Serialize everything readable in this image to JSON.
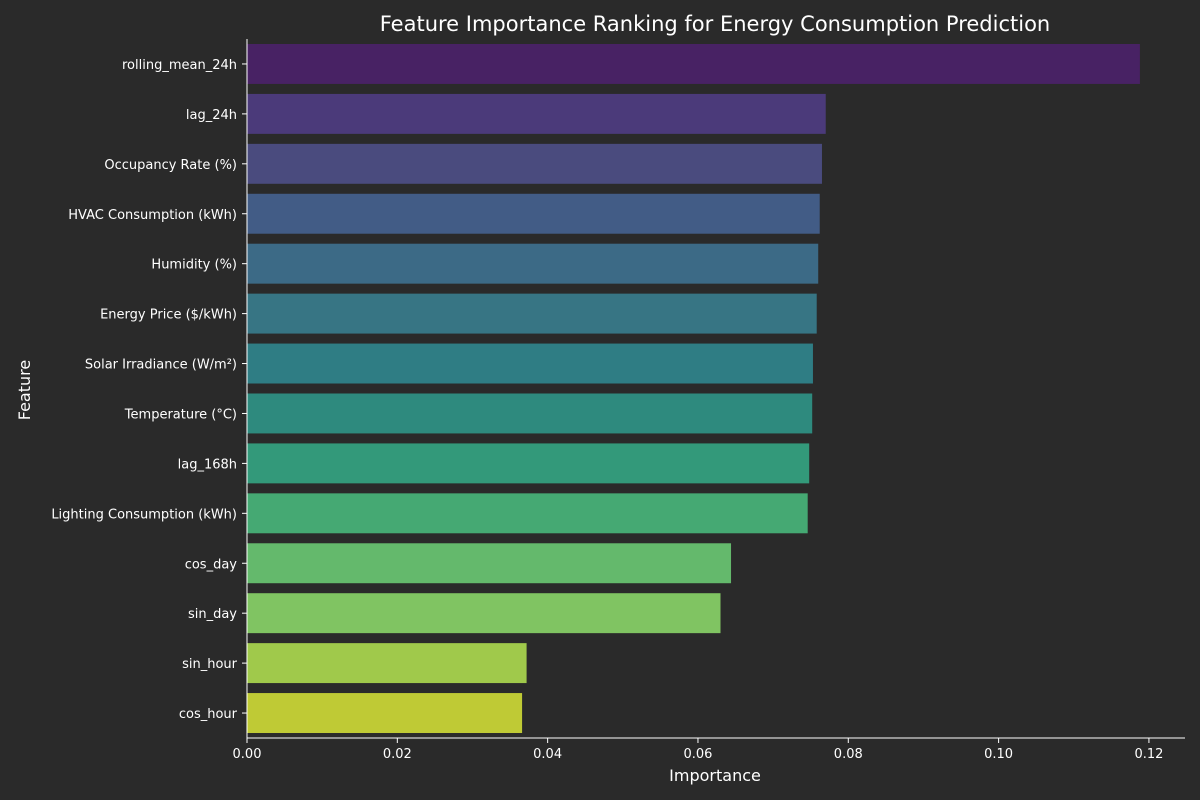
{
  "chart_data": {
    "type": "bar",
    "orientation": "horizontal",
    "title": "Feature Importance Ranking for Energy Consumption Prediction",
    "xlabel": "Importance",
    "ylabel": "Feature",
    "xlim": [
      0,
      0.1248
    ],
    "x_ticks": [
      0.0,
      0.02,
      0.04,
      0.06,
      0.08,
      0.1,
      0.12
    ],
    "x_tick_labels": [
      "0.00",
      "0.02",
      "0.04",
      "0.06",
      "0.08",
      "0.10",
      "0.12"
    ],
    "grid": false,
    "legend": "none",
    "colormap": "viridis",
    "categories": [
      "rolling_mean_24h",
      "lag_24h",
      "Occupancy Rate (%)",
      "HVAC Consumption (kWh)",
      "Humidity (%)",
      "Energy Price ($/kWh)",
      "Solar Irradiance (W/m²)",
      "Temperature (°C)",
      "lag_168h",
      "Lighting Consumption (kWh)",
      "cos_day",
      "sin_day",
      "sin_hour",
      "cos_hour"
    ],
    "values": [
      0.1188,
      0.077,
      0.0765,
      0.0762,
      0.076,
      0.0758,
      0.0753,
      0.0752,
      0.0748,
      0.0746,
      0.0644,
      0.063,
      0.0372,
      0.0366
    ],
    "colors": [
      "#482264",
      "#4b3a7a",
      "#4a4b7e",
      "#425c86",
      "#3c6a86",
      "#377584",
      "#2f7d84",
      "#2e8a7e",
      "#33997a",
      "#45a973",
      "#64b96c",
      "#80c462",
      "#a0c94b",
      "#bfca35"
    ]
  },
  "theme": {
    "background": "#2a2a2a",
    "text": "#ffffff",
    "axis": "#ffffff"
  }
}
